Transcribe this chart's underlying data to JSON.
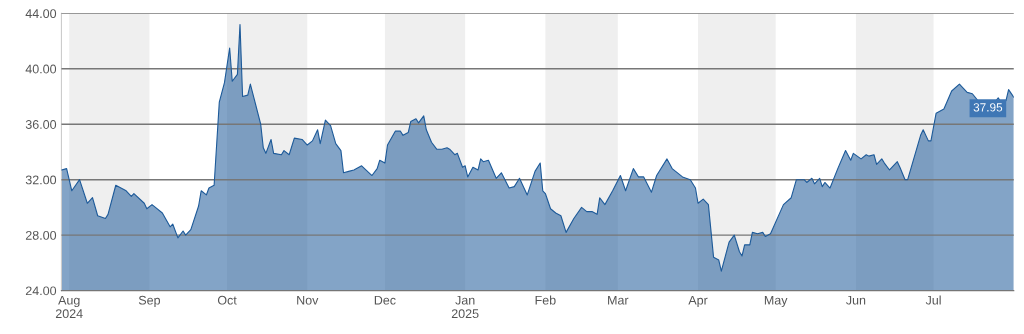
{
  "chart_data": {
    "type": "area",
    "x": [
      "2024-07-29",
      "2024-07-31",
      "2024-08-02",
      "2024-08-05",
      "2024-08-08",
      "2024-08-10",
      "2024-08-12",
      "2024-08-15",
      "2024-08-16",
      "2024-08-19",
      "2024-08-23",
      "2024-08-25",
      "2024-08-26",
      "2024-08-30",
      "2024-08-31",
      "2024-09-02",
      "2024-09-06",
      "2024-09-09",
      "2024-09-10",
      "2024-09-12",
      "2024-09-14",
      "2024-09-15",
      "2024-09-17",
      "2024-09-20",
      "2024-09-21",
      "2024-09-23",
      "2024-09-24",
      "2024-09-26",
      "2024-09-28",
      "2024-09-30",
      "2024-10-02",
      "2024-10-03",
      "2024-10-05",
      "2024-10-06",
      "2024-10-07",
      "2024-10-09",
      "2024-10-10",
      "2024-10-14",
      "2024-10-15",
      "2024-10-16",
      "2024-10-18",
      "2024-10-19",
      "2024-10-22",
      "2024-10-23",
      "2024-10-25",
      "2024-10-27",
      "2024-10-30",
      "2024-11-01",
      "2024-11-03",
      "2024-11-05",
      "2024-11-06",
      "2024-11-08",
      "2024-11-10",
      "2024-11-12",
      "2024-11-14",
      "2024-11-15",
      "2024-11-17",
      "2024-11-19",
      "2024-11-22",
      "2024-11-26",
      "2024-11-28",
      "2024-11-29",
      "2024-12-01",
      "2024-12-02",
      "2024-12-05",
      "2024-12-07",
      "2024-12-08",
      "2024-12-10",
      "2024-12-11",
      "2024-12-13",
      "2024-12-14",
      "2024-12-16",
      "2024-12-17",
      "2024-12-19",
      "2024-12-21",
      "2024-12-23",
      "2024-12-25",
      "2024-12-26",
      "2024-12-28",
      "2024-12-29",
      "2024-12-31",
      "2025-01-01",
      "2025-01-02",
      "2025-01-04",
      "2025-01-06",
      "2025-01-07",
      "2025-01-08",
      "2025-01-10",
      "2025-01-13",
      "2025-01-15",
      "2025-01-18",
      "2025-01-20",
      "2025-01-22",
      "2025-01-25",
      "2025-01-28",
      "2025-01-30",
      "2025-01-31",
      "2025-02-01",
      "2025-02-03",
      "2025-02-05",
      "2025-02-07",
      "2025-02-09",
      "2025-02-12",
      "2025-02-15",
      "2025-02-17",
      "2025-02-19",
      "2025-02-21",
      "2025-02-22",
      "2025-02-24",
      "2025-02-27",
      "2025-03-02",
      "2025-03-04",
      "2025-03-07",
      "2025-03-09",
      "2025-03-11",
      "2025-03-14",
      "2025-03-16",
      "2025-03-20",
      "2025-03-22",
      "2025-03-26",
      "2025-03-29",
      "2025-03-31",
      "2025-04-01",
      "2025-04-03",
      "2025-04-05",
      "2025-04-07",
      "2025-04-09",
      "2025-04-10",
      "2025-04-13",
      "2025-04-15",
      "2025-04-17",
      "2025-04-18",
      "2025-04-19",
      "2025-04-21",
      "2025-04-22",
      "2025-04-24",
      "2025-04-26",
      "2025-04-27",
      "2025-04-29",
      "2025-05-04",
      "2025-05-07",
      "2025-05-09",
      "2025-05-12",
      "2025-05-13",
      "2025-05-15",
      "2025-05-16",
      "2025-05-18",
      "2025-05-19",
      "2025-05-20",
      "2025-05-22",
      "2025-05-25",
      "2025-05-28",
      "2025-05-30",
      "2025-05-31",
      "2025-06-03",
      "2025-06-05",
      "2025-06-06",
      "2025-06-08",
      "2025-06-09",
      "2025-06-11",
      "2025-06-12",
      "2025-06-14",
      "2025-06-17",
      "2025-06-18",
      "2025-06-20",
      "2025-06-21",
      "2025-06-26",
      "2025-06-27",
      "2025-06-29",
      "2025-06-30",
      "2025-07-02",
      "2025-07-05",
      "2025-07-08",
      "2025-07-11",
      "2025-07-14",
      "2025-07-16",
      "2025-07-19",
      "2025-07-23",
      "2025-07-26",
      "2025-07-27",
      "2025-07-29",
      "2025-07-30",
      "2025-08-01"
    ],
    "series": [
      {
        "color": "#1d5a99",
        "values": [
          32.7,
          32.8,
          31.2,
          32.0,
          30.3,
          30.7,
          29.4,
          29.2,
          29.5,
          31.6,
          31.2,
          30.8,
          31.0,
          30.3,
          29.9,
          30.2,
          29.6,
          28.6,
          28.8,
          27.8,
          28.3,
          28.0,
          28.4,
          30.1,
          31.2,
          30.9,
          31.4,
          31.6,
          37.6,
          39.0,
          41.5,
          39.1,
          39.6,
          43.2,
          38.0,
          38.1,
          38.9,
          36.0,
          34.3,
          33.9,
          34.9,
          33.9,
          33.8,
          34.1,
          33.8,
          35.0,
          34.9,
          34.5,
          34.8,
          35.6,
          34.6,
          36.3,
          35.9,
          34.6,
          34.1,
          32.5,
          32.6,
          32.7,
          33.0,
          32.3,
          32.8,
          33.4,
          33.2,
          34.5,
          35.5,
          35.5,
          35.2,
          35.4,
          36.2,
          36.4,
          36.1,
          36.6,
          35.6,
          34.7,
          34.2,
          34.2,
          34.3,
          34.2,
          33.8,
          33.9,
          32.9,
          33.0,
          32.2,
          32.9,
          32.7,
          33.5,
          33.3,
          33.4,
          32.1,
          32.5,
          31.4,
          31.5,
          32.1,
          30.9,
          32.6,
          33.2,
          31.2,
          31.0,
          29.9,
          29.6,
          29.4,
          28.2,
          29.2,
          30.0,
          29.7,
          29.7,
          29.5,
          30.7,
          30.2,
          31.2,
          32.3,
          31.2,
          32.8,
          32.2,
          32.2,
          31.1,
          32.3,
          33.5,
          32.8,
          32.2,
          32.0,
          31.4,
          30.3,
          30.6,
          30.2,
          26.4,
          26.2,
          25.4,
          27.5,
          28.0,
          26.8,
          26.5,
          27.3,
          27.3,
          28.2,
          28.1,
          28.2,
          27.9,
          28.1,
          30.2,
          30.7,
          32.0,
          32.0,
          31.8,
          32.1,
          31.7,
          32.1,
          31.5,
          31.8,
          31.4,
          32.8,
          34.1,
          33.4,
          33.9,
          33.5,
          33.8,
          33.7,
          33.8,
          33.1,
          33.5,
          33.2,
          32.7,
          33.3,
          32.9,
          32.0,
          32.0,
          35.2,
          35.6,
          34.8,
          34.8,
          36.8,
          37.1,
          38.4,
          38.9,
          38.3,
          38.2,
          37.5,
          37.2,
          37.9,
          37.6,
          37.7,
          38.5,
          37.95
        ]
      }
    ],
    "xlim": [
      "2024-07-29",
      "2025-08-01"
    ],
    "xticks": [
      {
        "value": "2024-08-01",
        "label": "Aug\n2024"
      },
      {
        "value": "2024-09-01",
        "label": "Sep"
      },
      {
        "value": "2024-10-01",
        "label": "Oct"
      },
      {
        "value": "2024-11-01",
        "label": "Nov"
      },
      {
        "value": "2024-12-01",
        "label": "Dec"
      },
      {
        "value": "2025-01-01",
        "label": "Jan\n2025"
      },
      {
        "value": "2025-02-01",
        "label": "Feb"
      },
      {
        "value": "2025-03-01",
        "label": "Mar"
      },
      {
        "value": "2025-04-01",
        "label": "Apr"
      },
      {
        "value": "2025-05-01",
        "label": "May"
      },
      {
        "value": "2025-06-01",
        "label": "Jun"
      },
      {
        "value": "2025-07-01",
        "label": "Jul"
      }
    ],
    "ylim": [
      24,
      44
    ],
    "yticks": [
      {
        "value": 24,
        "label": "24.00"
      },
      {
        "value": 28,
        "label": "28.00"
      },
      {
        "value": 32,
        "label": "32.00"
      },
      {
        "value": 36,
        "label": "36.00"
      },
      {
        "value": 40,
        "label": "40.00"
      },
      {
        "value": 44,
        "label": "44.00"
      }
    ],
    "grid": "y",
    "bands": [
      {
        "axis": "x",
        "from": "2024-08-01",
        "to": "2024-09-01",
        "color": "#efefef"
      },
      {
        "axis": "x",
        "from": "2024-10-01",
        "to": "2024-11-01",
        "color": "#efefef"
      },
      {
        "axis": "x",
        "from": "2024-12-01",
        "to": "2025-01-01",
        "color": "#efefef"
      },
      {
        "axis": "x",
        "from": "2025-02-01",
        "to": "2025-03-01",
        "color": "#efefef"
      },
      {
        "axis": "x",
        "from": "2025-04-01",
        "to": "2025-05-01",
        "color": "#efefef"
      },
      {
        "axis": "x",
        "from": "2025-06-01",
        "to": "2025-07-01",
        "color": "#efefef"
      }
    ],
    "annotations": [
      {
        "text": "37.95",
        "x": "2025-08-01",
        "y": 37.95
      }
    ]
  }
}
